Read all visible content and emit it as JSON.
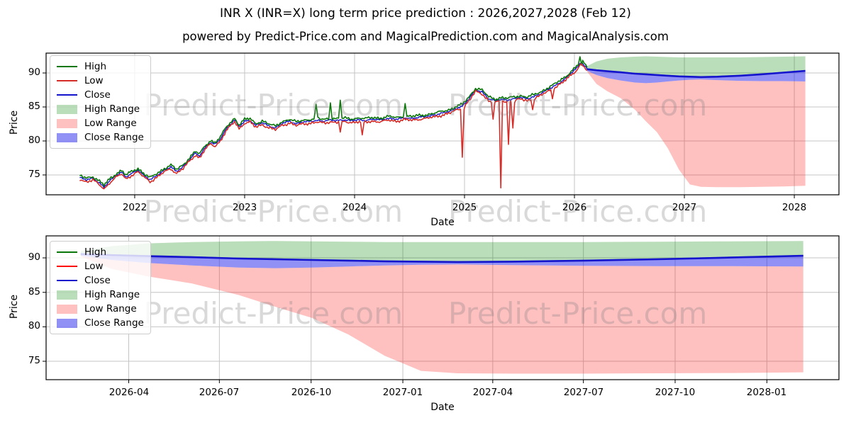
{
  "header": {
    "title": "INR X (INR=X) long term price prediction : 2026,2027,2028 (Feb 12)",
    "subtitle": "powered by Predict-Price.com and MagicalPrediction.com and MagicalAnalysis.com"
  },
  "watermark": {
    "text": "Predict-Price.com"
  },
  "colors": {
    "high": "#0a770a",
    "low_hist": "#d62c28",
    "low_bright": "#ff0000",
    "close": "#1414cc",
    "high_range_fill": "rgba(0,128,0,0.27)",
    "low_range_fill": "rgba(255,30,30,0.28)",
    "close_range_fill": "rgba(45,45,235,0.52)",
    "grid": "#c4c4c4",
    "spine": "#000000",
    "watermark_color": "rgba(130,130,130,0.30)"
  },
  "legend": {
    "items": [
      {
        "label": "High",
        "swatch": "line",
        "color_key": "high"
      },
      {
        "label": "Low",
        "swatch": "line",
        "color_key": "low_hist"
      },
      {
        "label": "Close",
        "swatch": "line",
        "color_key": "close"
      },
      {
        "label": "High Range",
        "swatch": "patch",
        "color_key": "high_range_fill"
      },
      {
        "label": "Low Range",
        "swatch": "patch",
        "color_key": "low_range_fill"
      },
      {
        "label": "Close Range",
        "swatch": "patch",
        "color_key": "close_range_fill"
      }
    ]
  },
  "chart_data": {
    "type": "line",
    "title": "INR X (INR=X) long term price prediction : 2026,2027,2028 (Feb 12)",
    "legend_entries": [
      "High",
      "Low",
      "Close",
      "High Range",
      "Low Range",
      "Close Range"
    ],
    "historical": {
      "x": [
        2021.5,
        2021.56,
        2021.62,
        2021.68,
        2021.72,
        2021.77,
        2021.83,
        2021.88,
        2021.92,
        2021.97,
        2022.03,
        2022.08,
        2022.14,
        2022.2,
        2022.27,
        2022.33,
        2022.38,
        2022.44,
        2022.5,
        2022.55,
        2022.59,
        2022.64,
        2022.69,
        2022.73,
        2022.78,
        2022.83,
        2022.88,
        2022.91,
        2022.95,
        2023.0,
        2023.05,
        2023.1,
        2023.16,
        2023.22,
        2023.28,
        2023.34,
        2023.41,
        2023.47,
        2023.53,
        2023.6,
        2023.66,
        2023.72,
        2023.78,
        2023.84,
        2023.9,
        2023.96,
        2024.03,
        2024.1,
        2024.17,
        2024.24,
        2024.31,
        2024.38,
        2024.45,
        2024.52,
        2024.59,
        2024.66,
        2024.73,
        2024.8,
        2024.87,
        2024.93,
        2024.98,
        2025.04,
        2025.1,
        2025.16,
        2025.22,
        2025.28,
        2025.33,
        2025.39,
        2025.45,
        2025.51,
        2025.57,
        2025.63,
        2025.69,
        2025.75,
        2025.81,
        2025.87,
        2025.92,
        2025.97,
        2026.02,
        2026.06,
        2026.09,
        2026.115
      ],
      "close": [
        74.6,
        74.3,
        74.5,
        73.8,
        73.2,
        74.1,
        74.9,
        75.4,
        74.7,
        75.2,
        75.7,
        75.0,
        74.3,
        74.9,
        75.7,
        76.2,
        75.5,
        76.2,
        77.3,
        78.2,
        77.8,
        79.0,
        79.8,
        79.5,
        80.3,
        81.7,
        82.6,
        83.1,
        82.1,
        82.9,
        83.0,
        82.3,
        82.7,
        82.2,
        81.9,
        82.6,
        82.9,
        82.5,
        82.8,
        82.9,
        83.0,
        82.9,
        83.1,
        83.0,
        83.1,
        83.0,
        83.1,
        83.0,
        83.2,
        83.1,
        83.3,
        83.2,
        83.4,
        83.3,
        83.5,
        83.6,
        83.8,
        84.1,
        84.4,
        84.8,
        85.1,
        86.2,
        87.5,
        87.2,
        86.2,
        85.9,
        86.1,
        86.0,
        86.2,
        86.4,
        86.2,
        86.5,
        86.9,
        87.5,
        88.0,
        88.6,
        89.2,
        90.0,
        90.7,
        91.6,
        91.1,
        90.55
      ],
      "high_spikes": [
        [
          2023.65,
          85.4
        ],
        [
          2023.78,
          85.6
        ],
        [
          2023.87,
          86.0
        ],
        [
          2024.46,
          85.5
        ],
        [
          2026.05,
          92.4
        ]
      ],
      "low_spikes": [
        [
          2023.87,
          81.3
        ],
        [
          2024.07,
          80.9
        ],
        [
          2024.98,
          77.6
        ],
        [
          2025.26,
          83.2
        ],
        [
          2025.33,
          73.1
        ],
        [
          2025.4,
          79.5
        ],
        [
          2025.44,
          81.9
        ],
        [
          2025.62,
          84.6
        ],
        [
          2025.8,
          86.2
        ]
      ]
    },
    "forecast": {
      "x": [
        2026.115,
        2026.2,
        2026.3,
        2026.42,
        2026.55,
        2026.65,
        2026.75,
        2026.85,
        2026.95,
        2027.05,
        2027.15,
        2027.3,
        2027.5,
        2027.7,
        2027.9,
        2028.1
      ],
      "close": [
        90.55,
        90.4,
        90.25,
        90.1,
        89.9,
        89.8,
        89.7,
        89.6,
        89.5,
        89.45,
        89.4,
        89.45,
        89.6,
        89.8,
        90.05,
        90.3
      ],
      "high_upper": [
        91.0,
        91.7,
        92.1,
        92.3,
        92.4,
        92.45,
        92.4,
        92.35,
        92.3,
        92.3,
        92.3,
        92.3,
        92.3,
        92.35,
        92.4,
        92.45
      ],
      "close_lower": [
        90.3,
        89.7,
        89.25,
        88.9,
        88.6,
        88.5,
        88.6,
        88.75,
        88.9,
        89.0,
        89.05,
        88.95,
        88.85,
        88.8,
        88.8,
        88.75
      ],
      "low_lower": [
        90.2,
        88.4,
        87.3,
        86.3,
        84.6,
        82.9,
        81.3,
        78.9,
        75.8,
        73.6,
        73.25,
        73.2,
        73.2,
        73.25,
        73.3,
        73.4
      ]
    },
    "subplots": [
      {
        "name": "full-history",
        "xlabel": "Date",
        "ylabel": "Price",
        "xlim": [
          2021.194,
          2028.406
        ],
        "ylim": [
          72.08,
          92.92
        ],
        "grid": true,
        "legend_position": "upper left",
        "show_historical": true,
        "low_color_key": "low_hist",
        "x_ticks": [
          {
            "v": 2022,
            "label": "2022"
          },
          {
            "v": 2023,
            "label": "2023"
          },
          {
            "v": 2024,
            "label": "2024"
          },
          {
            "v": 2025,
            "label": "2025"
          },
          {
            "v": 2026,
            "label": "2026"
          },
          {
            "v": 2027,
            "label": "2027"
          },
          {
            "v": 2028,
            "label": "2028"
          }
        ],
        "y_ticks": [
          {
            "v": 75,
            "label": "75"
          },
          {
            "v": 80,
            "label": "80"
          },
          {
            "v": 85,
            "label": "85"
          },
          {
            "v": 90,
            "label": "90"
          }
        ]
      },
      {
        "name": "forecast-zoom",
        "xlabel": "Date",
        "ylabel": "Price",
        "xlim": [
          2026.02,
          2028.198
        ],
        "ylim": [
          72.33,
          93.19
        ],
        "grid": true,
        "legend_position": "upper left",
        "show_historical": false,
        "low_color_key": "low_bright",
        "x_ticks": [
          {
            "v": 2026.247,
            "label": "2026-04"
          },
          {
            "v": 2026.496,
            "label": "2026-07"
          },
          {
            "v": 2026.748,
            "label": "2026-10"
          },
          {
            "v": 2027.0,
            "label": "2027-01"
          },
          {
            "v": 2027.247,
            "label": "2027-04"
          },
          {
            "v": 2027.496,
            "label": "2027-07"
          },
          {
            "v": 2027.748,
            "label": "2027-10"
          },
          {
            "v": 2028.0,
            "label": "2028-01"
          }
        ],
        "y_ticks": [
          {
            "v": 75,
            "label": "75"
          },
          {
            "v": 80,
            "label": "80"
          },
          {
            "v": 85,
            "label": "85"
          },
          {
            "v": 90,
            "label": "90"
          }
        ]
      }
    ]
  }
}
